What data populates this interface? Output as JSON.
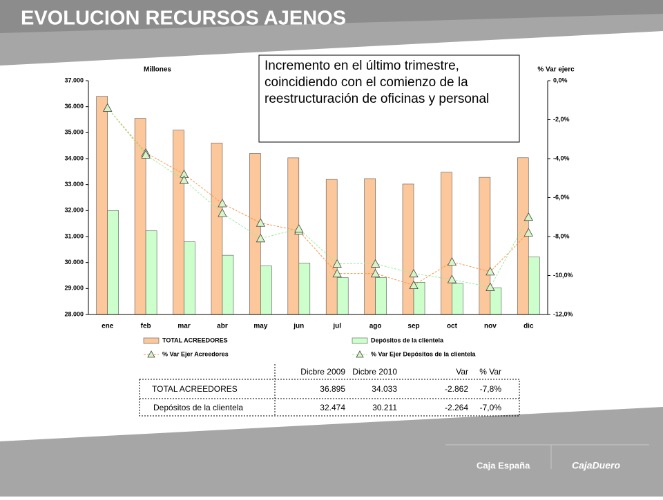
{
  "title": "EVOLUCION  RECURSOS AJENOS",
  "annotation": "Incremento en el último trimestre, coincidiendo con el comienzo de la reestructuración de oficinas y personal",
  "chart_data": {
    "type": "bar-line",
    "y_label": "Millones",
    "y2_label": "% Var ejerc",
    "categories": [
      "ene",
      "feb",
      "mar",
      "abr",
      "may",
      "jun",
      "jul",
      "ago",
      "sep",
      "oct",
      "nov",
      "dic"
    ],
    "ylim": [
      28000,
      37000
    ],
    "yticks": [
      {
        "value": 28000,
        "label": "28.000"
      },
      {
        "value": 29000,
        "label": "29.000"
      },
      {
        "value": 30000,
        "label": "30.000"
      },
      {
        "value": 31000,
        "label": "31.000"
      },
      {
        "value": 32000,
        "label": "32.000"
      },
      {
        "value": 33000,
        "label": "33.000"
      },
      {
        "value": 34000,
        "label": "34.000"
      },
      {
        "value": 35000,
        "label": "35.000"
      },
      {
        "value": 36000,
        "label": "36.000"
      },
      {
        "value": 37000,
        "label": "37.000"
      }
    ],
    "y2lim": [
      -12,
      0
    ],
    "y2ticks": [
      {
        "value": -12,
        "label": "-12,0%"
      },
      {
        "value": -10,
        "label": "-10,0%"
      },
      {
        "value": -8,
        "label": "-8,0%"
      },
      {
        "value": -6,
        "label": "-6,0%"
      },
      {
        "value": -4,
        "label": "-4,0%"
      },
      {
        "value": -2,
        "label": "-2,0%"
      },
      {
        "value": 0,
        "label": "0,0%"
      }
    ],
    "series": [
      {
        "name": "TOTAL ACREEDORES",
        "kind": "bar",
        "color": "#fcc79a",
        "values": [
          36400,
          35550,
          35100,
          34600,
          34200,
          34030,
          33200,
          33230,
          33020,
          33480,
          33280,
          34033
        ]
      },
      {
        "name": "Depósitos de la clientela",
        "kind": "bar",
        "color": "#ccffcc",
        "values": [
          32000,
          31220,
          30800,
          30280,
          29870,
          29980,
          29420,
          29420,
          29240,
          29200,
          29030,
          30211
        ]
      },
      {
        "name": "% Var Ejer Acreedores",
        "kind": "line",
        "axis": "y2",
        "color": "#f79646",
        "values": [
          -1.4,
          -3.7,
          -4.8,
          -6.3,
          -7.3,
          -7.7,
          -9.9,
          -9.9,
          -10.5,
          -9.3,
          -9.8,
          -7.8
        ]
      },
      {
        "name": "% Var Ejer Depósitos de la clientela",
        "kind": "line",
        "axis": "y2",
        "color": "#99ee99",
        "values": [
          -1.4,
          -3.8,
          -5.1,
          -6.8,
          -8.1,
          -7.6,
          -9.4,
          -9.4,
          -9.9,
          -10.2,
          -10.6,
          -7.0
        ]
      }
    ]
  },
  "table": {
    "columns": [
      "Dicbre 2009",
      "Dicbre 2010",
      "Var",
      "% Var"
    ],
    "rows": [
      [
        "TOTAL ACREEDORES",
        "36.895",
        "34.033",
        "-2.862",
        "-7,8%"
      ],
      [
        "Depósitos de la clientela",
        "32.474",
        "30.211",
        "-2.264",
        "-7,0%"
      ]
    ]
  },
  "logos": [
    "Caja España",
    "CajaDuero"
  ]
}
